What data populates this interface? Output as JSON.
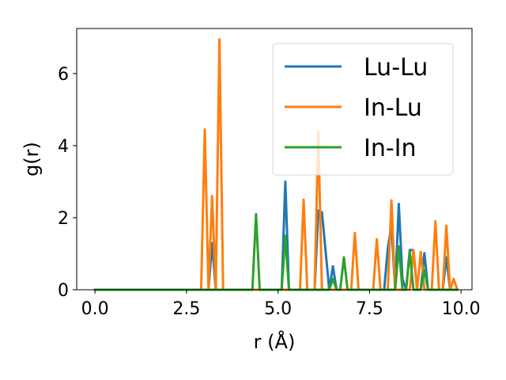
{
  "chart_data": {
    "type": "line",
    "title": "",
    "xlabel": "r (Å)",
    "ylabel": "g(r)",
    "xlim": [
      -0.5,
      10.3
    ],
    "ylim": [
      0,
      7.25
    ],
    "xticks": [
      0.0,
      2.5,
      5.0,
      7.5,
      10.0
    ],
    "xtick_labels": [
      "0.0",
      "2.5",
      "5.0",
      "7.5",
      "10.0"
    ],
    "yticks": [
      0,
      2,
      4,
      6
    ],
    "ytick_labels": [
      "0",
      "2",
      "4",
      "6"
    ],
    "grid": false,
    "legend_position": "top-right",
    "series": [
      {
        "name": "Lu-Lu",
        "color": "#1f77b4",
        "x": [
          0.0,
          3.0,
          3.1,
          3.2,
          3.3,
          3.4,
          3.5,
          5.1,
          5.2,
          5.3,
          6.0,
          6.1,
          6.2,
          6.4,
          6.5,
          6.6,
          7.9,
          8.0,
          8.1,
          8.2,
          8.3,
          8.4,
          8.5,
          8.6,
          8.7,
          8.8,
          8.9,
          9.0,
          9.1,
          9.5,
          9.6,
          9.7,
          9.8,
          9.9
        ],
        "y": [
          0.0,
          0.0,
          0.0,
          1.3,
          0.0,
          0.0,
          0.0,
          0.0,
          3.0,
          0.0,
          0.0,
          2.2,
          2.15,
          0.0,
          0.65,
          0.0,
          0.0,
          1.15,
          1.8,
          0.0,
          2.38,
          0.3,
          0.0,
          1.1,
          1.1,
          0.0,
          0.0,
          1.02,
          0.0,
          0.0,
          0.9,
          0.0,
          0.0,
          0.0
        ]
      },
      {
        "name": "In-Lu",
        "color": "#ff7f0e",
        "x": [
          0.0,
          2.9,
          3.0,
          3.1,
          3.2,
          3.3,
          3.4,
          3.5,
          5.6,
          5.7,
          5.8,
          6.0,
          6.1,
          6.2,
          6.3,
          7.0,
          7.1,
          7.2,
          7.6,
          7.7,
          7.8,
          8.0,
          8.1,
          8.2,
          8.6,
          8.7,
          8.8,
          8.9,
          9.0,
          9.2,
          9.3,
          9.4,
          9.5,
          9.6,
          9.7,
          9.8,
          9.9
        ],
        "y": [
          0.0,
          0.0,
          4.45,
          0.0,
          2.6,
          0.0,
          6.95,
          0.0,
          0.0,
          2.5,
          0.0,
          0.0,
          4.38,
          0.0,
          0.0,
          0.0,
          1.58,
          0.0,
          0.0,
          1.4,
          0.0,
          0.0,
          2.48,
          0.0,
          0.0,
          1.1,
          0.0,
          1.05,
          0.0,
          0.0,
          1.9,
          0.0,
          0.0,
          1.78,
          0.0,
          0.3,
          0.0
        ]
      },
      {
        "name": "In-In",
        "color": "#2ca02c",
        "x": [
          0.0,
          4.3,
          4.4,
          4.5,
          5.1,
          5.2,
          5.3,
          6.4,
          6.5,
          6.6,
          6.7,
          6.8,
          6.9,
          8.1,
          8.2,
          8.3,
          8.4,
          8.5,
          8.6,
          8.7,
          8.8,
          8.9,
          9.0,
          9.1,
          9.2,
          9.3,
          9.4,
          9.9
        ],
        "y": [
          0.0,
          0.0,
          2.1,
          0.0,
          0.0,
          1.5,
          0.0,
          0.0,
          0.3,
          0.0,
          0.0,
          0.9,
          0.0,
          0.0,
          0.0,
          1.2,
          0.0,
          0.0,
          1.05,
          0.0,
          0.0,
          0.0,
          0.55,
          0.0,
          0.0,
          0.0,
          0.0,
          0.0
        ]
      }
    ]
  }
}
